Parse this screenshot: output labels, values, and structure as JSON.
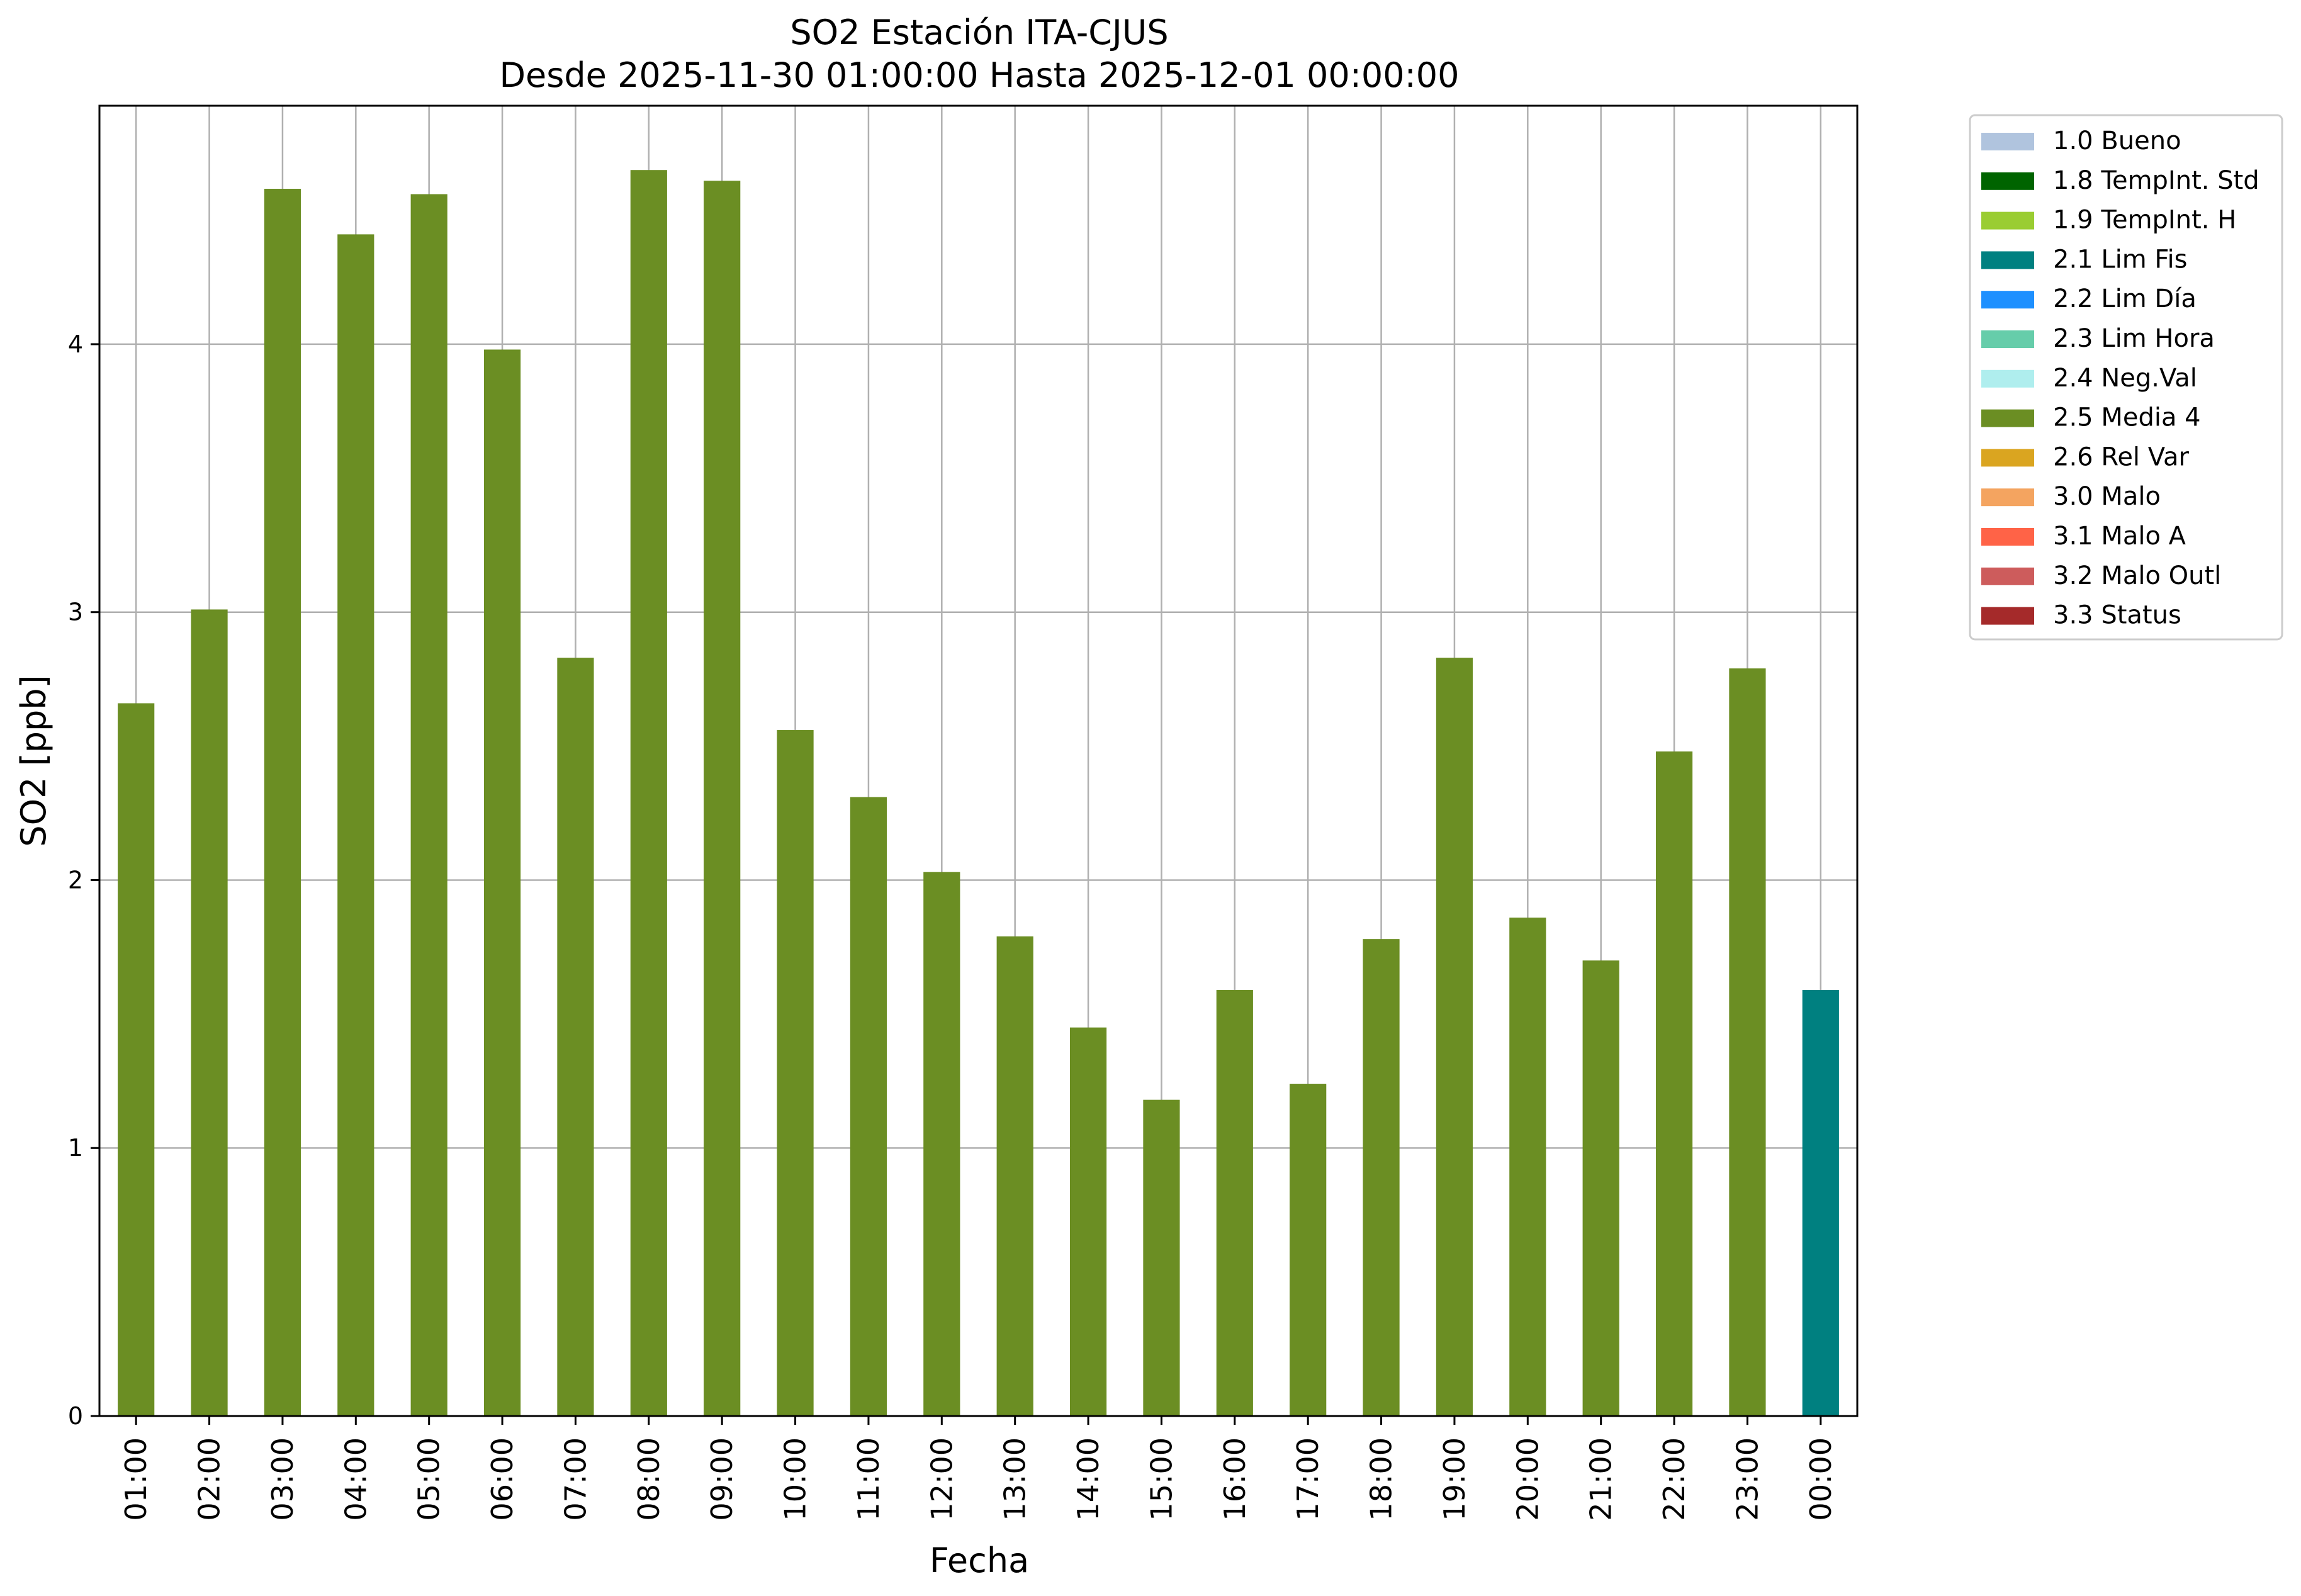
{
  "chart_data": {
    "type": "bar",
    "title": "SO2 Estación ITA-CJUS",
    "subtitle": "Desde 2025-11-30 01:00:00 Hasta 2025-12-01 00:00:00",
    "xlabel": "Fecha",
    "ylabel": "SO2 [ppb]",
    "ylim": [
      0,
      4.89
    ],
    "yticks": [
      0,
      1,
      2,
      3,
      4
    ],
    "grid": true,
    "legend_position": "outside-top-right",
    "categories": [
      "01:00",
      "02:00",
      "03:00",
      "04:00",
      "05:00",
      "06:00",
      "07:00",
      "08:00",
      "09:00",
      "10:00",
      "11:00",
      "12:00",
      "13:00",
      "14:00",
      "15:00",
      "16:00",
      "17:00",
      "18:00",
      "19:00",
      "20:00",
      "21:00",
      "22:00",
      "23:00",
      "00:00"
    ],
    "values": [
      2.66,
      3.01,
      4.58,
      4.41,
      4.56,
      3.98,
      2.83,
      4.65,
      4.61,
      2.56,
      2.31,
      2.03,
      1.79,
      1.45,
      1.18,
      1.59,
      1.24,
      1.78,
      2.83,
      1.86,
      1.7,
      2.48,
      2.79,
      1.59
    ],
    "bar_flags": [
      "2.5 Media 4",
      "2.5 Media 4",
      "2.5 Media 4",
      "2.5 Media 4",
      "2.5 Media 4",
      "2.5 Media 4",
      "2.5 Media 4",
      "2.5 Media 4",
      "2.5 Media 4",
      "2.5 Media 4",
      "2.5 Media 4",
      "2.5 Media 4",
      "2.5 Media 4",
      "2.5 Media 4",
      "2.5 Media 4",
      "2.5 Media 4",
      "2.5 Media 4",
      "2.5 Media 4",
      "2.5 Media 4",
      "2.5 Media 4",
      "2.5 Media 4",
      "2.5 Media 4",
      "2.5 Media 4",
      "2.1 Lim Fis"
    ],
    "legend": [
      {
        "label": "1.0 Bueno",
        "color": "#b0c4de"
      },
      {
        "label": "1.8 TempInt. Std",
        "color": "#006400"
      },
      {
        "label": "1.9 TempInt. H",
        "color": "#9acd32"
      },
      {
        "label": "2.1 Lim Fis",
        "color": "#008080"
      },
      {
        "label": "2.2 Lim Día",
        "color": "#1e90ff"
      },
      {
        "label": "2.3 Lim Hora",
        "color": "#66cdaa"
      },
      {
        "label": "2.4 Neg.Val",
        "color": "#afeeee"
      },
      {
        "label": "2.5 Media 4",
        "color": "#6b8e23"
      },
      {
        "label": "2.6 Rel Var",
        "color": "#daa520"
      },
      {
        "label": "3.0 Malo",
        "color": "#f4a460"
      },
      {
        "label": "3.1 Malo A",
        "color": "#ff6347"
      },
      {
        "label": "3.2 Malo Outl",
        "color": "#cd5c5c"
      },
      {
        "label": "3.3 Status",
        "color": "#a52a2a"
      }
    ]
  }
}
